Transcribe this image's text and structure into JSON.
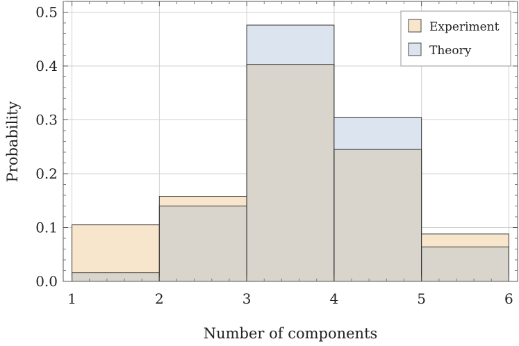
{
  "chart_data": {
    "type": "bar",
    "bins": [
      [
        1,
        2
      ],
      [
        2,
        3
      ],
      [
        3,
        4
      ],
      [
        4,
        5
      ],
      [
        5,
        6
      ]
    ],
    "series": [
      {
        "name": "Experiment",
        "values": [
          0.105,
          0.158,
          0.403,
          0.245,
          0.088
        ],
        "color": "#f8e6cc"
      },
      {
        "name": "Theory",
        "values": [
          0.016,
          0.14,
          0.476,
          0.304,
          0.064
        ],
        "color": "#dce4ef"
      }
    ],
    "overlap_color": "#d9d4cc",
    "xlabel": "Number of components",
    "ylabel": "Probability",
    "xlim": [
      0.9,
      6.1
    ],
    "ylim": [
      0,
      0.52
    ],
    "xticks": [
      "1",
      "2",
      "3",
      "4",
      "5",
      "6"
    ],
    "yticks": [
      "0.0",
      "0.1",
      "0.2",
      "0.3",
      "0.4",
      "0.5"
    ],
    "grid": true,
    "legend_position": "top-right"
  }
}
